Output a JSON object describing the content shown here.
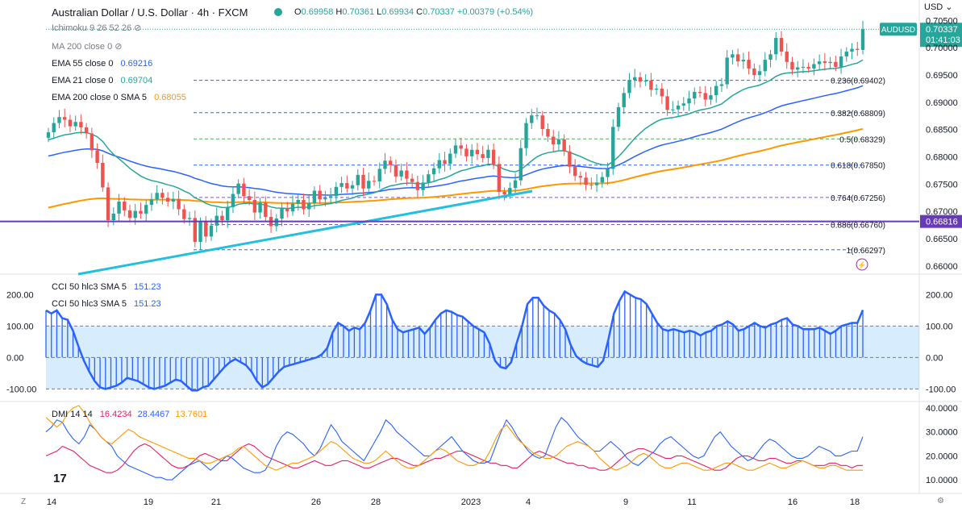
{
  "header": {
    "title": "Australian Dollar / U.S. Dollar · 4h · FXCM",
    "o_label": "O",
    "o_value": "0.69958",
    "h_label": "H",
    "h_value": "0.70361",
    "l_label": "L",
    "l_value": "0.69934",
    "c_label": "C",
    "c_value": "0.70337",
    "change": "+0.00379 (+0.54%)",
    "currency": "USD"
  },
  "legend": {
    "ichimoku": "Ichimoku 9 26 52 26",
    "ma200": "MA 200 close 0",
    "ema55": "EMA 55 close 0",
    "ema55_value": "0.69216",
    "ema21": "EMA 21 close 0",
    "ema21_value": "0.69704",
    "ema200": "EMA 200 close 0 SMA 5",
    "ema200_value": "0.68055",
    "cci1": "CCI 50 hlc3 SMA 5",
    "cci1_value": "151.23",
    "cci2": "CCI 50 hlc3 SMA 5",
    "cci2_value": "151.23",
    "dmi": "DMI 14 14",
    "dmi_v1": "16.4234",
    "dmi_v2": "28.4467",
    "dmi_v3": "13.7601"
  },
  "price_badges": {
    "symbol": "AUDUSD",
    "price": "0.70337",
    "countdown": "01:41:03",
    "hline": "0.66816"
  },
  "fib_levels": [
    {
      "label": "0.236(0.69402)",
      "value": 0.69402,
      "color": "#2962ff"
    },
    {
      "label": "0.382(0.68809)",
      "value": 0.68809,
      "color": "#2962ff"
    },
    {
      "label": "0.5(0.68329)",
      "value": 0.68329,
      "color": "#4caf50"
    },
    {
      "label": "0.618(0.67850)",
      "value": 0.6785,
      "color": "#2962ff"
    },
    {
      "label": "0.764(0.67256)",
      "value": 0.67256,
      "color": "#7e57c2"
    },
    {
      "label": "0.886(0.66760)",
      "value": 0.6676,
      "color": "#7e57c2"
    },
    {
      "label": "1(0.66297)",
      "value": 0.66297,
      "color": "#2962ff"
    }
  ],
  "colors": {
    "up": "#26a69a",
    "down": "#ef5350",
    "ema55": "#2962ff",
    "ema21": "#26a69a",
    "ema200": "#ff9800",
    "trend": "#22c0e0",
    "hline": "#673ab7",
    "cci": "#2962ff",
    "dmi_plus": "#e91e63",
    "dmi_adx": "#2962ff",
    "dmi_minus": "#ff9800"
  },
  "chart_data": [
    {
      "type": "candlestick",
      "title": "Australian Dollar / U.S. Dollar · 4h · FXCM",
      "x_ticks": [
        "14",
        "19",
        "21",
        "26",
        "28",
        "2023",
        "4",
        "9",
        "11",
        "16",
        "18"
      ],
      "y_ticks": [
        "0.70500",
        "0.70000",
        "0.69500",
        "0.69000",
        "0.68500",
        "0.68000",
        "0.67500",
        "0.67000",
        "0.66500",
        "0.66000"
      ],
      "ylim": [
        0.6588,
        0.7055
      ],
      "close": [
        0.6845,
        0.6862,
        0.6873,
        0.6868,
        0.6856,
        0.6864,
        0.6854,
        0.6843,
        0.6812,
        0.6789,
        0.6744,
        0.6684,
        0.6696,
        0.6718,
        0.6702,
        0.6688,
        0.6701,
        0.6696,
        0.6712,
        0.6722,
        0.6734,
        0.6725,
        0.6718,
        0.6723,
        0.6704,
        0.6686,
        0.6688,
        0.6644,
        0.6681,
        0.6654,
        0.6674,
        0.6692,
        0.6684,
        0.6708,
        0.6732,
        0.6751,
        0.6728,
        0.6721,
        0.6698,
        0.6716,
        0.669,
        0.6673,
        0.6687,
        0.6705,
        0.67,
        0.6714,
        0.6721,
        0.6704,
        0.6715,
        0.6738,
        0.6722,
        0.6725,
        0.6728,
        0.6745,
        0.6752,
        0.6742,
        0.6748,
        0.6767,
        0.6742,
        0.6756,
        0.6755,
        0.6778,
        0.6793,
        0.6785,
        0.6764,
        0.6775,
        0.676,
        0.6754,
        0.6739,
        0.6753,
        0.6768,
        0.6779,
        0.6794,
        0.6787,
        0.6806,
        0.6821,
        0.6815,
        0.6801,
        0.6813,
        0.6805,
        0.6798,
        0.6813,
        0.6787,
        0.6736,
        0.6731,
        0.6743,
        0.6757,
        0.6816,
        0.6862,
        0.6876,
        0.6876,
        0.6851,
        0.6837,
        0.6823,
        0.6832,
        0.681,
        0.6782,
        0.6765,
        0.6762,
        0.6749,
        0.6748,
        0.6753,
        0.6763,
        0.6778,
        0.6855,
        0.6891,
        0.6917,
        0.6941,
        0.6946,
        0.6938,
        0.694,
        0.6923,
        0.6925,
        0.6911,
        0.6886,
        0.6887,
        0.6894,
        0.6898,
        0.6907,
        0.6919,
        0.6917,
        0.6905,
        0.6913,
        0.693,
        0.6933,
        0.6982,
        0.6988,
        0.6975,
        0.6978,
        0.6962,
        0.695,
        0.6957,
        0.6978,
        0.6988,
        0.7018,
        0.6993,
        0.6974,
        0.696,
        0.6964,
        0.6965,
        0.6962,
        0.697,
        0.6975,
        0.6972,
        0.6974,
        0.6965,
        0.6984,
        0.6993,
        0.6998,
        0.6996,
        0.7034
      ],
      "series": [
        {
          "name": "EMA 55 close 0",
          "last": 0.69216
        },
        {
          "name": "EMA 21 close 0",
          "last": 0.69704
        },
        {
          "name": "EMA 200 close 0 SMA 5",
          "last": 0.68055
        }
      ]
    },
    {
      "type": "histogram",
      "name": "CCI 50 hlc3 SMA 5",
      "y_ticks": [
        "200.00",
        "100.00",
        "0.00",
        "-100.00"
      ],
      "ylim": [
        -135,
        260
      ],
      "band": [
        -100,
        100
      ],
      "values": [
        150,
        140,
        150,
        125,
        120,
        85,
        35,
        -10,
        -45,
        -75,
        -95,
        -100,
        -95,
        -90,
        -80,
        -65,
        -70,
        -75,
        -85,
        -95,
        -100,
        -95,
        -90,
        -80,
        -70,
        -75,
        -90,
        -105,
        -105,
        -95,
        -90,
        -70,
        -50,
        -30,
        -15,
        -5,
        -15,
        -25,
        -45,
        -75,
        -95,
        -85,
        -65,
        -45,
        -30,
        -25,
        -20,
        -15,
        -10,
        -5,
        0,
        10,
        30,
        80,
        110,
        100,
        85,
        95,
        90,
        110,
        150,
        200,
        200,
        170,
        120,
        90,
        80,
        85,
        90,
        95,
        75,
        95,
        120,
        140,
        150,
        145,
        135,
        130,
        115,
        100,
        90,
        80,
        45,
        -10,
        -30,
        -35,
        -15,
        45,
        100,
        170,
        190,
        190,
        165,
        150,
        140,
        120,
        90,
        40,
        5,
        -10,
        -20,
        -25,
        -30,
        -10,
        60,
        140,
        180,
        210,
        200,
        190,
        185,
        170,
        140,
        110,
        90,
        85,
        90,
        85,
        80,
        85,
        80,
        70,
        80,
        85,
        100,
        105,
        115,
        105,
        85,
        90,
        100,
        110,
        100,
        95,
        105,
        110,
        120,
        125,
        105,
        100,
        90,
        90,
        90,
        95,
        85,
        75,
        85,
        100,
        105,
        110,
        110,
        151
      ]
    },
    {
      "type": "line",
      "name": "DMI 14 14",
      "y_ticks": [
        "40.0000",
        "30.0000",
        "20.0000",
        "10.0000"
      ],
      "ylim": [
        5,
        42
      ],
      "series": [
        {
          "name": "+DI",
          "last": 16.4234,
          "values": [
            20,
            21,
            22,
            24,
            23,
            22,
            20,
            18,
            16,
            15,
            14,
            13,
            13,
            14,
            16,
            19,
            22,
            24,
            25,
            24,
            22,
            20,
            18,
            16,
            15,
            15,
            16,
            18,
            20,
            21,
            20,
            19,
            18,
            18,
            20,
            22,
            24,
            25,
            24,
            22,
            20,
            19,
            18,
            17,
            16,
            15,
            15,
            16,
            17,
            18,
            17,
            16,
            16,
            17,
            18,
            18,
            17,
            16,
            15,
            15,
            16,
            17,
            18,
            19,
            19,
            18,
            17,
            16,
            16,
            17,
            18,
            19,
            19,
            20,
            21,
            22,
            22,
            21,
            20,
            19,
            18,
            17,
            17,
            16,
            16,
            15,
            15,
            17,
            19,
            21,
            22,
            21,
            20,
            19,
            18,
            17,
            17,
            16,
            16,
            15,
            15,
            14,
            14,
            15,
            17,
            19,
            21,
            22,
            23,
            23,
            22,
            21,
            20,
            19,
            19,
            20,
            20,
            19,
            18,
            17,
            16,
            15,
            14,
            14,
            15,
            17,
            19,
            20,
            20,
            19,
            18,
            18,
            19,
            19,
            18,
            17,
            17,
            18,
            18,
            17,
            16,
            16,
            16,
            17,
            17,
            16,
            16,
            15,
            16,
            16
          ]
        },
        {
          "name": "ADX",
          "last": 28.4467,
          "values": [
            30,
            32,
            35,
            34,
            30,
            27,
            25,
            28,
            33,
            31,
            28,
            26,
            24,
            20,
            18,
            16,
            15,
            14,
            13,
            12,
            11,
            11,
            10,
            10,
            12,
            14,
            16,
            17,
            18,
            16,
            14,
            16,
            18,
            20,
            19,
            17,
            15,
            14,
            13,
            13,
            14,
            18,
            24,
            28,
            30,
            29,
            27,
            25,
            22,
            20,
            23,
            28,
            33,
            30,
            26,
            24,
            22,
            20,
            18,
            22,
            26,
            30,
            35,
            33,
            30,
            28,
            26,
            24,
            22,
            20,
            20,
            22,
            24,
            26,
            28,
            25,
            22,
            20,
            18,
            17,
            17,
            18,
            24,
            30,
            35,
            32,
            28,
            25,
            22,
            20,
            19,
            20,
            26,
            32,
            36,
            34,
            31,
            28,
            26,
            24,
            22,
            22,
            24,
            26,
            24,
            22,
            19,
            17,
            16,
            18,
            20,
            22,
            25,
            27,
            28,
            26,
            24,
            22,
            20,
            19,
            20,
            24,
            28,
            30,
            27,
            24,
            22,
            20,
            18,
            19,
            22,
            25,
            27,
            26,
            24,
            22,
            20,
            19,
            19,
            20,
            22,
            24,
            23,
            22,
            20,
            20,
            21,
            22,
            22,
            28
          ]
        },
        {
          "name": "-DI",
          "last": 13.7601,
          "values": [
            36,
            34,
            32,
            34,
            38,
            40,
            41,
            38,
            34,
            31,
            28,
            26,
            25,
            27,
            29,
            31,
            30,
            28,
            27,
            26,
            25,
            24,
            23,
            22,
            21,
            20,
            19,
            19,
            18,
            17,
            17,
            18,
            19,
            20,
            21,
            23,
            24,
            22,
            20,
            18,
            16,
            15,
            14,
            15,
            16,
            17,
            17,
            18,
            19,
            20,
            22,
            24,
            26,
            25,
            23,
            21,
            19,
            18,
            17,
            17,
            18,
            20,
            22,
            20,
            18,
            16,
            15,
            15,
            16,
            18,
            20,
            22,
            23,
            22,
            20,
            18,
            17,
            16,
            16,
            17,
            18,
            22,
            27,
            31,
            33,
            30,
            27,
            25,
            23,
            21,
            20,
            19,
            19,
            20,
            22,
            24,
            25,
            26,
            25,
            24,
            22,
            19,
            17,
            15,
            14,
            15,
            16,
            18,
            20,
            21,
            20,
            18,
            16,
            15,
            15,
            16,
            17,
            17,
            16,
            15,
            14,
            14,
            15,
            16,
            17,
            17,
            16,
            15,
            14,
            14,
            15,
            16,
            17,
            16,
            15,
            15,
            16,
            17,
            18,
            17,
            16,
            15,
            15,
            16,
            16,
            15,
            14,
            14,
            14,
            14
          ]
        }
      ]
    }
  ]
}
